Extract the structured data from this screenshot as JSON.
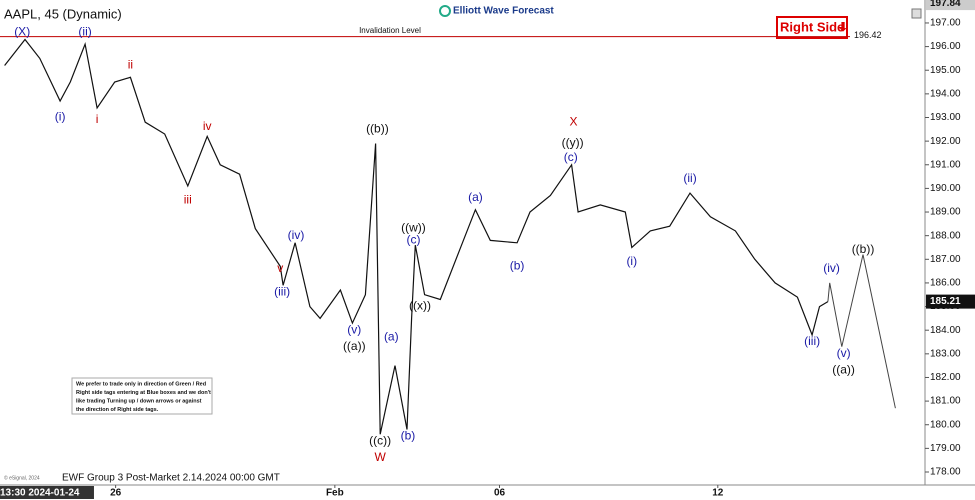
{
  "chart_data": {
    "type": "line",
    "title": "AAPL, 45 (Dynamic)",
    "brand": "Elliott Wave Forecast",
    "badge": "Right Side",
    "footer": "EWF Group 3 Post-Market 2.14.2024 00:00 GMT",
    "copyright": "© eSignal, 2024",
    "disclaimer": [
      "We prefer to trade only in direction of Green / Red",
      "Right side tags entering at Blue boxes and we don't",
      "like trading Turning up / down arrows or against",
      "the direction of Right side tags."
    ],
    "invalidation": {
      "label": "Invalidation Level",
      "value": 196.42,
      "color": "#c00000"
    },
    "high_label": {
      "value": 197.84
    },
    "last_price": {
      "value": 185.21
    },
    "xlim": [
      0,
      100
    ],
    "ylim": [
      177.45,
      197.76
    ],
    "xticks": [
      {
        "value": 2.7,
        "label": "13:30 2024-01-24"
      },
      {
        "value": 12.5,
        "label": "26"
      },
      {
        "value": 36.2,
        "label": "Feb"
      },
      {
        "value": 54,
        "label": "06"
      },
      {
        "value": 77.6,
        "label": "12"
      }
    ],
    "yticks": [
      {
        "value": 178,
        "label": "178.00"
      },
      {
        "value": 179,
        "label": "179.00"
      },
      {
        "value": 180,
        "label": "180.00"
      },
      {
        "value": 181,
        "label": "181.00"
      },
      {
        "value": 182,
        "label": "182.00"
      },
      {
        "value": 183,
        "label": "183.00"
      },
      {
        "value": 184,
        "label": "184.00"
      },
      {
        "value": 185,
        "label": "185.00"
      },
      {
        "value": 186,
        "label": "186.00"
      },
      {
        "value": 187,
        "label": "187.00"
      },
      {
        "value": 188,
        "label": "188.00"
      },
      {
        "value": 189,
        "label": "189.00"
      },
      {
        "value": 190,
        "label": "190.00"
      },
      {
        "value": 191,
        "label": "191.00"
      },
      {
        "value": 192,
        "label": "192.00"
      },
      {
        "value": 193,
        "label": "193.00"
      },
      {
        "value": 194,
        "label": "194.00"
      },
      {
        "value": 195,
        "label": "195.00"
      },
      {
        "value": 196,
        "label": "196.00"
      },
      {
        "value": 197,
        "label": "197.00"
      }
    ],
    "series": [
      {
        "color": "#111111",
        "width": 1.2,
        "x": [
          0.5,
          2.7,
          4.3,
          6.5,
          7.6,
          9.2,
          10.5,
          12.4,
          14.1,
          15.7,
          17.8,
          20.3,
          22.4,
          23.8,
          25.9,
          27.6,
          30.3,
          30.6,
          31.9,
          33.5,
          34.6,
          36.8,
          38.1,
          39.5,
          40.6,
          41.1,
          42.7,
          44.0,
          44.5,
          44.9,
          45.9,
          47.6,
          49.7,
          51.4,
          53.0,
          55.9,
          57.3,
          59.5,
          61.8,
          62.5,
          64.9,
          67.6,
          68.3,
          70.3,
          72.4,
          74.6,
          76.8,
          79.5,
          81.6,
          83.8,
          86.2,
          87.8,
          88.6,
          89.5
        ],
        "values": [
          195.2,
          196.3,
          195.5,
          193.7,
          194.5,
          196.1,
          193.4,
          194.5,
          194.7,
          192.8,
          192.3,
          190.1,
          192.2,
          191.0,
          190.6,
          188.3,
          186.7,
          185.9,
          187.7,
          185.0,
          184.5,
          185.7,
          184.3,
          185.5,
          191.9,
          179.6,
          182.5,
          179.8,
          184.5,
          187.6,
          185.5,
          185.3,
          187.4,
          189.1,
          187.8,
          187.7,
          189.0,
          189.7,
          191.0,
          189.0,
          189.3,
          189.0,
          187.5,
          188.2,
          188.4,
          189.8,
          188.8,
          188.2,
          187.0,
          186.0,
          185.4,
          183.8,
          185.0,
          185.21
        ]
      },
      {
        "color": "#444444",
        "width": 1,
        "x": [
          89.5,
          89.7,
          91.0,
          93.3,
          96.8
        ],
        "values": [
          185.21,
          186.0,
          183.3,
          187.2,
          180.7
        ]
      }
    ],
    "annotations": [
      {
        "text": "(X)",
        "x": 2.4,
        "y": 196.6,
        "color": "#1a1aa6"
      },
      {
        "text": "(ii)",
        "x": 9.2,
        "y": 196.6,
        "color": "#1a1aa6"
      },
      {
        "text": "(i)",
        "x": 6.5,
        "y": 193.0,
        "color": "#1a1aa6"
      },
      {
        "text": "i",
        "x": 10.5,
        "y": 192.9,
        "color": "#c00000"
      },
      {
        "text": "ii",
        "x": 14.1,
        "y": 195.2,
        "color": "#c00000"
      },
      {
        "text": "iii",
        "x": 20.3,
        "y": 189.5,
        "color": "#c00000"
      },
      {
        "text": "iv",
        "x": 22.4,
        "y": 192.6,
        "color": "#c00000"
      },
      {
        "text": "v",
        "x": 30.3,
        "y": 186.6,
        "color": "#c00000"
      },
      {
        "text": "(iii)",
        "x": 30.5,
        "y": 185.6,
        "color": "#1a1aa6"
      },
      {
        "text": "(iv)",
        "x": 32.0,
        "y": 188.0,
        "color": "#1a1aa6"
      },
      {
        "text": "(v)",
        "x": 38.3,
        "y": 184.0,
        "color": "#1a1aa6"
      },
      {
        "text": "((a))",
        "x": 38.3,
        "y": 183.3,
        "color": "#111111"
      },
      {
        "text": "((b))",
        "x": 40.8,
        "y": 192.5,
        "color": "#111111"
      },
      {
        "text": "((c))",
        "x": 41.1,
        "y": 179.3,
        "color": "#111111"
      },
      {
        "text": "W",
        "x": 41.1,
        "y": 178.6,
        "color": "#c00000"
      },
      {
        "text": "(a)",
        "x": 42.3,
        "y": 183.7,
        "color": "#1a1aa6"
      },
      {
        "text": "(b)",
        "x": 44.1,
        "y": 179.5,
        "color": "#1a1aa6"
      },
      {
        "text": "((x))",
        "x": 45.4,
        "y": 185.0,
        "color": "#111111"
      },
      {
        "text": "((w))",
        "x": 44.7,
        "y": 188.3,
        "color": "#111111"
      },
      {
        "text": "(c)",
        "x": 44.7,
        "y": 187.8,
        "color": "#1a1aa6"
      },
      {
        "text": "(a)",
        "x": 51.4,
        "y": 189.6,
        "color": "#1a1aa6"
      },
      {
        "text": "(b)",
        "x": 55.9,
        "y": 186.7,
        "color": "#1a1aa6"
      },
      {
        "text": "X",
        "x": 62.0,
        "y": 192.8,
        "color": "#c00000"
      },
      {
        "text": "((y))",
        "x": 61.9,
        "y": 191.9,
        "color": "#111111"
      },
      {
        "text": "(c)",
        "x": 61.7,
        "y": 191.3,
        "color": "#1a1aa6"
      },
      {
        "text": "(i)",
        "x": 68.3,
        "y": 186.9,
        "color": "#1a1aa6"
      },
      {
        "text": "(ii)",
        "x": 74.6,
        "y": 190.4,
        "color": "#1a1aa6"
      },
      {
        "text": "(iii)",
        "x": 87.8,
        "y": 183.5,
        "color": "#1a1aa6"
      },
      {
        "text": "(iv)",
        "x": 89.9,
        "y": 186.6,
        "color": "#1a1aa6"
      },
      {
        "text": "(v)",
        "x": 91.2,
        "y": 183.0,
        "color": "#1a1aa6"
      },
      {
        "text": "((a))",
        "x": 91.2,
        "y": 182.3,
        "color": "#111111"
      },
      {
        "text": "((b))",
        "x": 93.3,
        "y": 187.4,
        "color": "#111111"
      }
    ]
  }
}
